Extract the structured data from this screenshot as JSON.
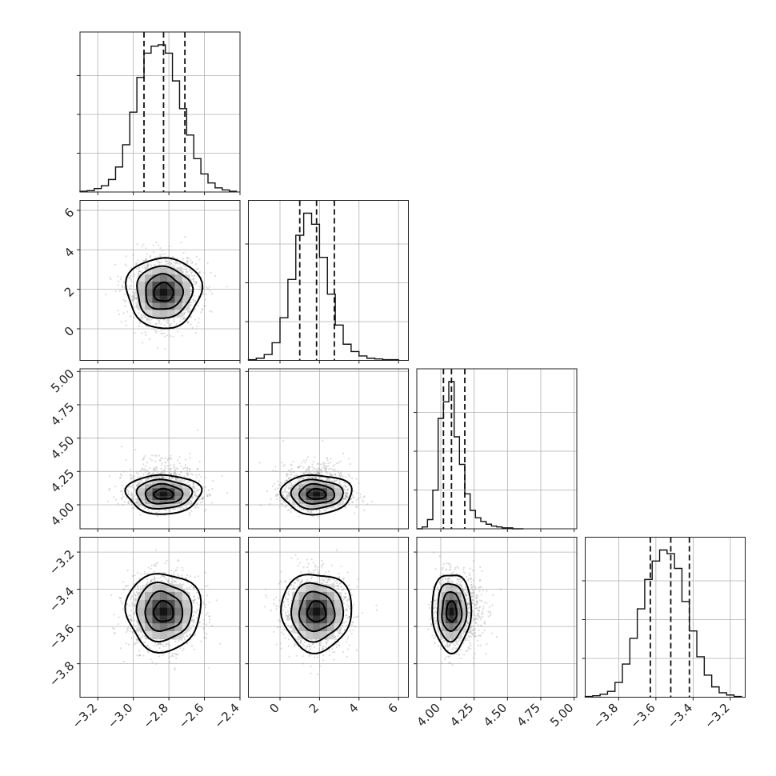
{
  "chart_data": {
    "type": "corner",
    "figure": "corner plot of posterior samples for 4 parameters",
    "grid": true,
    "parameters": [
      {
        "index": 0,
        "range": [
          -3.3,
          -2.4
        ],
        "ticks": [
          -3.2,
          -3.0,
          -2.8,
          -2.6,
          -2.4
        ],
        "tick_labels": [
          "−3.2",
          "−3.0",
          "−2.8",
          "−2.6",
          "−2.4"
        ],
        "quantiles": [
          -2.94,
          -2.83,
          -2.71
        ],
        "center": -2.83,
        "sigma": 0.1
      },
      {
        "index": 1,
        "range": [
          -1.6,
          6.5
        ],
        "ticks": [
          0,
          2,
          4,
          6
        ],
        "tick_labels": [
          "0",
          "2",
          "4",
          "6"
        ],
        "quantiles": [
          1.0,
          1.85,
          2.75
        ],
        "center": 1.85,
        "sigma": 0.85
      },
      {
        "index": 2,
        "range": [
          3.82,
          5.02
        ],
        "ticks": [
          4.0,
          4.25,
          4.5,
          4.75,
          5.0
        ],
        "tick_labels": [
          "4.00",
          "4.25",
          "4.50",
          "4.75",
          "5.00"
        ],
        "quantiles": [
          4.02,
          4.08,
          4.18
        ],
        "center": 4.08,
        "sigma": 0.07
      },
      {
        "index": 3,
        "range": [
          -3.98,
          -3.12
        ],
        "ticks": [
          -3.8,
          -3.6,
          -3.4,
          -3.2
        ],
        "tick_labels": [
          "−3.8",
          "−3.6",
          "−3.4",
          "−3.2"
        ],
        "quantiles": [
          -3.63,
          -3.52,
          -3.42
        ],
        "center": -3.52,
        "sigma": 0.1
      }
    ],
    "histograms": [
      {
        "parameter": 0,
        "bin_edges": [
          -3.3,
          -3.26,
          -3.22,
          -3.18,
          -3.14,
          -3.1,
          -3.06,
          -3.02,
          -2.98,
          -2.94,
          -2.9,
          -2.86,
          -2.82,
          -2.78,
          -2.74,
          -2.7,
          -2.66,
          -2.62,
          -2.58,
          -2.54,
          -2.5,
          -2.46,
          -2.42
        ],
        "counts": [
          1,
          2,
          5,
          9,
          18,
          36,
          68,
          115,
          165,
          200,
          210,
          212,
          200,
          160,
          120,
          82,
          48,
          26,
          13,
          6,
          3,
          1
        ]
      },
      {
        "parameter": 1,
        "bin_edges": [
          -1.6,
          -1.2,
          -0.8,
          -0.4,
          0.0,
          0.4,
          0.8,
          1.2,
          1.6,
          2.0,
          2.4,
          2.8,
          3.2,
          3.6,
          4.0,
          4.4,
          4.8,
          5.2,
          5.6,
          6.0
        ],
        "counts": [
          1,
          3,
          8,
          24,
          58,
          110,
          170,
          200,
          185,
          140,
          90,
          48,
          22,
          12,
          6,
          3,
          2,
          1,
          1
        ]
      },
      {
        "parameter": 2,
        "bin_edges": [
          3.82,
          3.86,
          3.9,
          3.94,
          3.98,
          4.02,
          4.06,
          4.1,
          4.14,
          4.18,
          4.22,
          4.26,
          4.3,
          4.34,
          4.38,
          4.42,
          4.46,
          4.5,
          4.54,
          4.58,
          4.62
        ],
        "counts": [
          0,
          2,
          10,
          42,
          120,
          138,
          160,
          100,
          70,
          38,
          20,
          12,
          8,
          5,
          3,
          2,
          1,
          1,
          0,
          0
        ]
      },
      {
        "parameter": 3,
        "bin_edges": [
          -3.98,
          -3.94,
          -3.9,
          -3.86,
          -3.82,
          -3.78,
          -3.74,
          -3.7,
          -3.66,
          -3.62,
          -3.58,
          -3.54,
          -3.5,
          -3.46,
          -3.42,
          -3.38,
          -3.34,
          -3.3,
          -3.26,
          -3.22,
          -3.18,
          -3.14
        ],
        "counts": [
          1,
          2,
          4,
          8,
          20,
          45,
          80,
          120,
          160,
          185,
          200,
          195,
          175,
          130,
          90,
          55,
          30,
          14,
          6,
          3,
          1
        ]
      }
    ],
    "pair_panels": [
      {
        "x": 0,
        "y": 1
      },
      {
        "x": 0,
        "y": 2
      },
      {
        "x": 1,
        "y": 2
      },
      {
        "x": 0,
        "y": 3
      },
      {
        "x": 1,
        "y": 3
      },
      {
        "x": 2,
        "y": 3
      }
    ],
    "contour_levels": 4,
    "scatter": "light gray sample points"
  }
}
